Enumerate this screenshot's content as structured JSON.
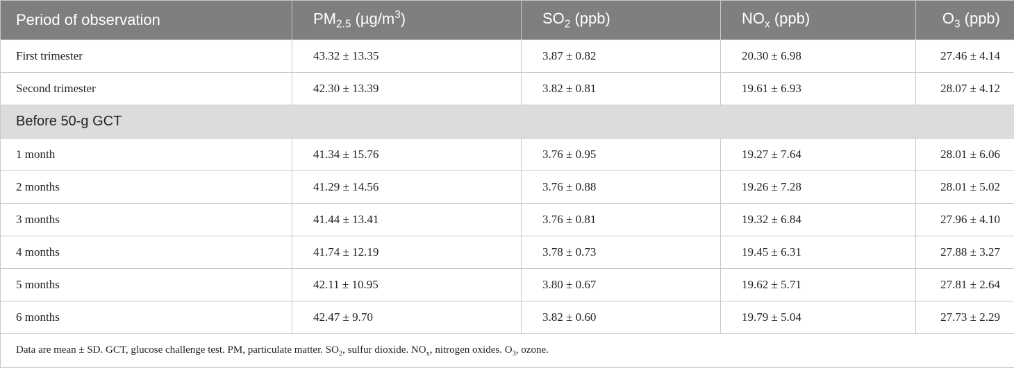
{
  "table": {
    "header": [
      [
        "Period of observation"
      ],
      [
        "PM",
        {
          "sub": "2.5"
        },
        " (µg/m",
        {
          "sup": "3"
        },
        ")"
      ],
      [
        "SO",
        {
          "sub": "2"
        },
        " (ppb)"
      ],
      [
        "NO",
        {
          "sub": "x"
        },
        " (ppb)"
      ],
      [
        "O",
        {
          "sub": "3"
        },
        " (ppb)"
      ]
    ],
    "rows": [
      [
        "First trimester",
        "43.32 ± 13.35",
        "3.87 ± 0.82",
        "20.30 ± 6.98",
        "27.46 ± 4.14"
      ],
      [
        "Second trimester",
        "42.30 ± 13.39",
        "3.82 ± 0.81",
        "19.61 ± 6.93",
        "28.07 ± 4.12"
      ],
      [
        "Before 50-g GCT"
      ],
      [
        "1 month",
        "41.34 ± 15.76",
        "3.76 ± 0.95",
        "19.27 ± 7.64",
        "28.01 ± 6.06"
      ],
      [
        "2 months",
        "41.29 ± 14.56",
        "3.76 ± 0.88",
        "19.26 ± 7.28",
        "28.01 ± 5.02"
      ],
      [
        "3 months",
        "41.44 ± 13.41",
        "3.76 ± 0.81",
        "19.32 ± 6.84",
        "27.96 ± 4.10"
      ],
      [
        "4 months",
        "41.74 ± 12.19",
        "3.78 ± 0.73",
        "19.45 ± 6.31",
        "27.88 ± 3.27"
      ],
      [
        "5 months",
        "42.11 ± 10.95",
        "3.80 ± 0.67",
        "19.62 ± 5.71",
        "27.81 ± 2.64"
      ],
      [
        "6 months",
        "42.47 ± 9.70",
        "3.82 ± 0.60",
        "19.79 ± 5.04",
        "27.73 ± 2.29"
      ]
    ],
    "footnote": [
      "Data are mean ± SD. GCT, glucose challenge test. PM, particulate matter. SO",
      {
        "sub": "2"
      },
      ", sulfur dioxide. NO",
      {
        "sub": "x"
      },
      ", nitrogen oxides. O",
      {
        "sub": "3"
      },
      ", ozone."
    ]
  }
}
